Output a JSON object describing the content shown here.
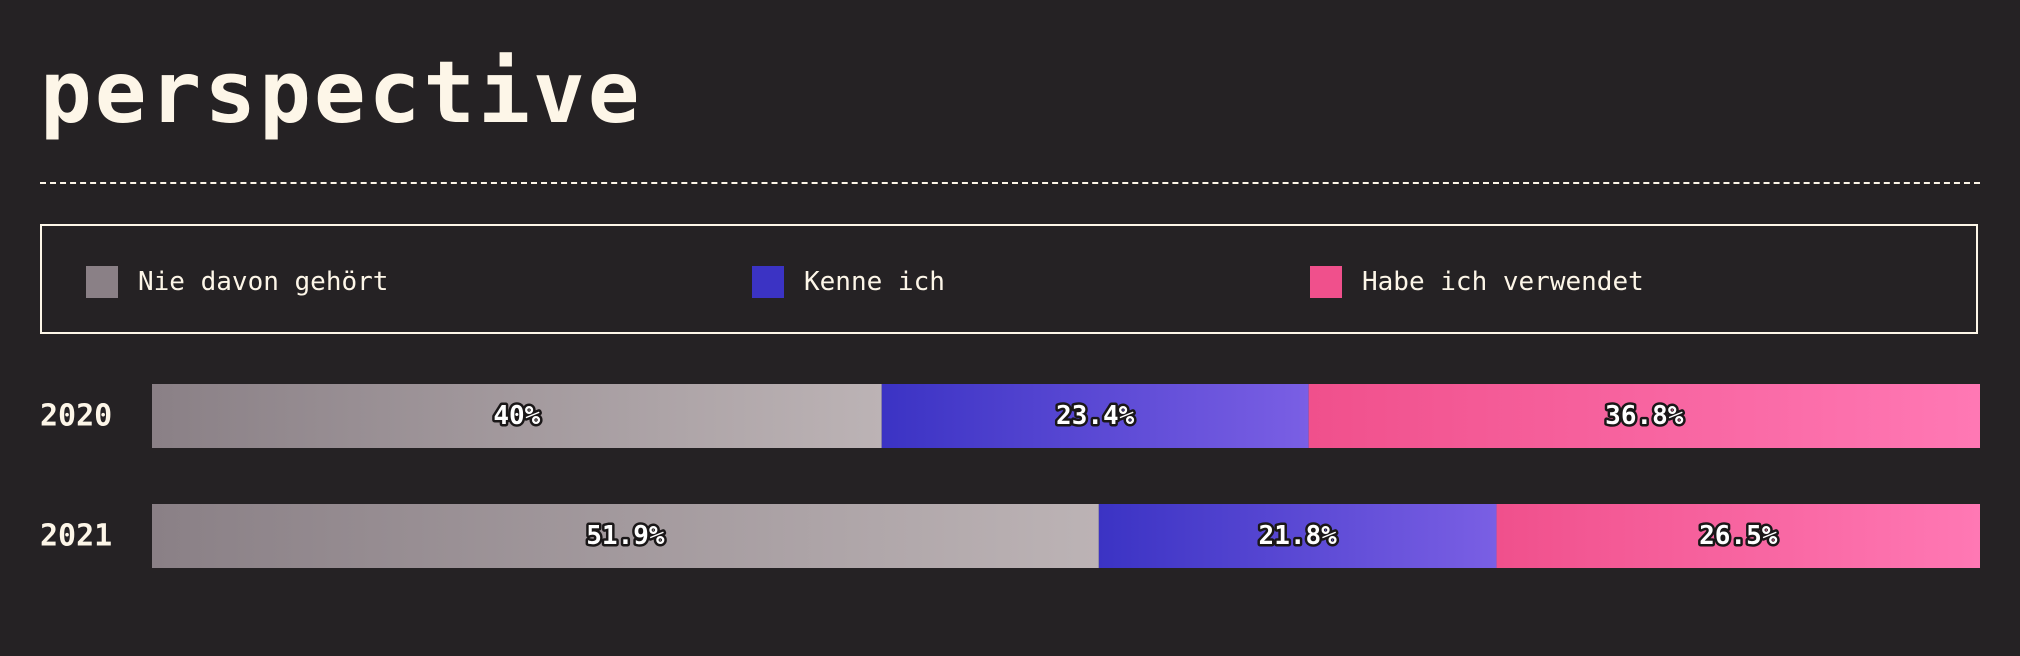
{
  "title": "perspective",
  "colors": {
    "background": "#252224",
    "text": "#fdf6e8"
  },
  "legend": {
    "items": [
      {
        "label": "Nie davon gehört",
        "color": "#8a8086"
      },
      {
        "label": "Kenne ich",
        "color": "#3b33c4"
      },
      {
        "label": "Habe ich verwendet",
        "color": "#f0508c"
      }
    ]
  },
  "chart_data": {
    "type": "bar",
    "orientation": "horizontal",
    "stacked": true,
    "normalized": true,
    "categories": [
      "2020",
      "2021"
    ],
    "series": [
      {
        "name": "Nie davon gehört",
        "values": [
          40,
          51.9
        ],
        "labels": [
          "40%",
          "51.9%"
        ],
        "color_start": "#8a8086",
        "color_end": "#bcb3b5"
      },
      {
        "name": "Kenne ich",
        "values": [
          23.4,
          21.8
        ],
        "labels": [
          "23.4%",
          "21.8%"
        ],
        "color_start": "#3b33c4",
        "color_end": "#7a5fe4"
      },
      {
        "name": "Habe ich verwendet",
        "values": [
          36.8,
          26.5
        ],
        "labels": [
          "36.8%",
          "26.5%"
        ],
        "color_start": "#f0508c",
        "color_end": "#ff78b4"
      }
    ],
    "xlim": [
      0,
      100
    ],
    "grid": false,
    "legend": "top"
  }
}
